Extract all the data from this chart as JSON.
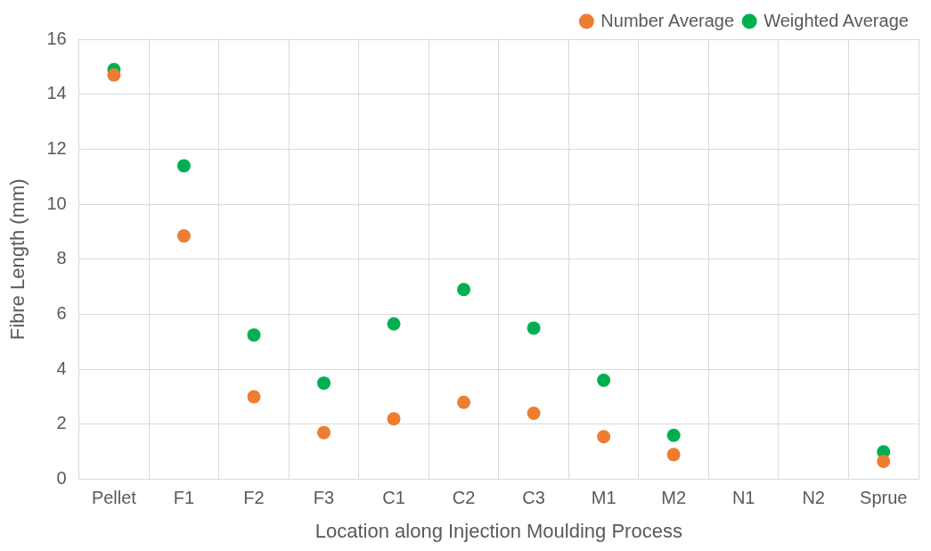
{
  "chart_data": {
    "type": "scatter",
    "xlabel": "Location along Injection Moulding Process",
    "ylabel": "Fibre Length (mm)",
    "categories": [
      "Pellet",
      "F1",
      "F2",
      "F3",
      "C1",
      "C2",
      "C3",
      "M1",
      "M2",
      "N1",
      "N2",
      "Sprue"
    ],
    "series": [
      {
        "name": "Weighted Average",
        "color": "#00b050",
        "values": [
          14.9,
          11.4,
          5.25,
          3.5,
          5.65,
          6.9,
          5.5,
          3.6,
          1.6,
          null,
          null,
          1.0
        ]
      },
      {
        "name": "Number Average",
        "color": "#ed7d31",
        "values": [
          14.7,
          8.85,
          3.0,
          1.7,
          2.2,
          2.8,
          2.4,
          1.55,
          0.9,
          null,
          null,
          0.65
        ]
      }
    ],
    "ylim": [
      0,
      16
    ],
    "yticks": [
      0,
      2,
      4,
      6,
      8,
      10,
      12,
      14,
      16
    ],
    "grid": true,
    "legend": "top right",
    "marker": "circle"
  }
}
